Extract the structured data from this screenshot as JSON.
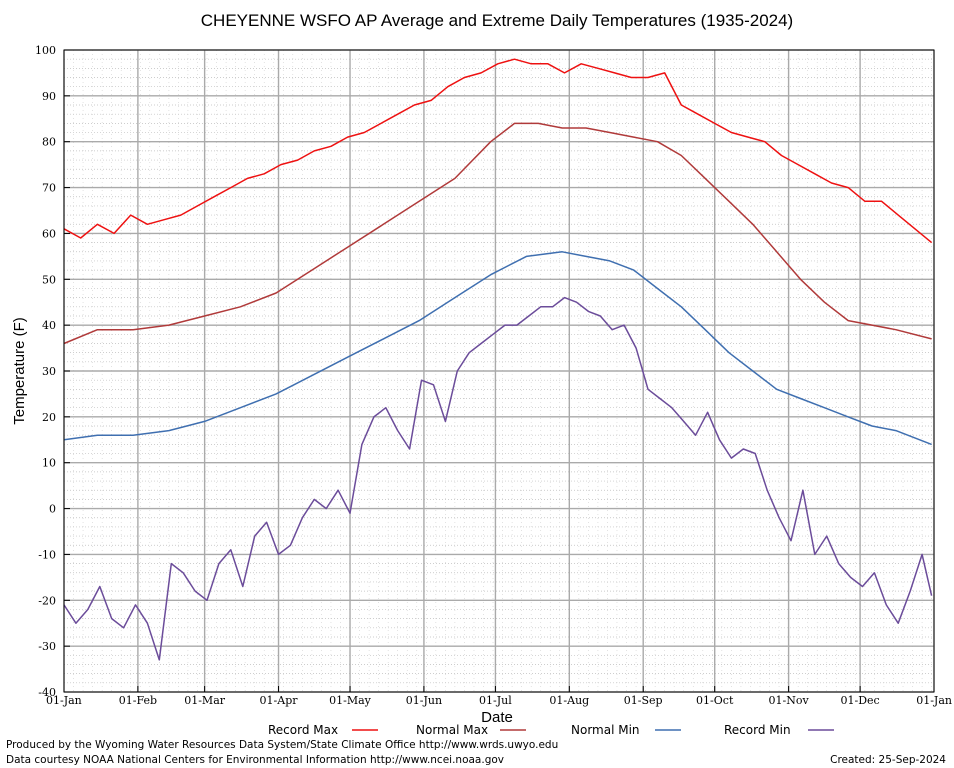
{
  "chart_data": {
    "type": "line",
    "title": "CHEYENNE WSFO AP Average and Extreme Daily Temperatures (1935-2024)",
    "xlabel": "Date",
    "ylabel": "Temperature (F)",
    "ylim": [
      -40,
      100
    ],
    "yticks": [
      -40,
      -30,
      -20,
      -10,
      0,
      10,
      20,
      30,
      40,
      50,
      60,
      70,
      80,
      90,
      100
    ],
    "x_range_days": [
      1,
      366
    ],
    "xticks": [
      {
        "label": "01-Jan",
        "day": 1
      },
      {
        "label": "01-Feb",
        "day": 32
      },
      {
        "label": "01-Mar",
        "day": 60
      },
      {
        "label": "01-Apr",
        "day": 91
      },
      {
        "label": "01-May",
        "day": 121
      },
      {
        "label": "01-Jun",
        "day": 152
      },
      {
        "label": "01-Jul",
        "day": 182
      },
      {
        "label": "01-Aug",
        "day": 213
      },
      {
        "label": "01-Sep",
        "day": 244
      },
      {
        "label": "01-Oct",
        "day": 274
      },
      {
        "label": "01-Nov",
        "day": 305
      },
      {
        "label": "01-Dec",
        "day": 335
      },
      {
        "label": "01-Jan",
        "day": 366
      }
    ],
    "grid": true,
    "legend_position": "bottom",
    "series": [
      {
        "name": "Record Max",
        "color": "#ee1111",
        "x_days": [
          1,
          8,
          15,
          22,
          29,
          36,
          43,
          50,
          57,
          64,
          71,
          78,
          85,
          92,
          99,
          106,
          113,
          120,
          127,
          134,
          141,
          148,
          155,
          162,
          169,
          176,
          183,
          190,
          197,
          204,
          211,
          218,
          225,
          232,
          239,
          246,
          253,
          260,
          267,
          274,
          281,
          288,
          295,
          302,
          309,
          316,
          323,
          330,
          337,
          344,
          351,
          358,
          365
        ],
        "values": [
          61,
          59,
          62,
          60,
          64,
          62,
          63,
          64,
          66,
          68,
          70,
          72,
          73,
          75,
          76,
          78,
          79,
          81,
          82,
          84,
          86,
          88,
          89,
          92,
          94,
          95,
          97,
          98,
          97,
          97,
          95,
          97,
          96,
          95,
          94,
          94,
          95,
          88,
          86,
          84,
          82,
          81,
          80,
          77,
          75,
          73,
          71,
          70,
          67,
          67,
          64,
          61,
          58
        ]
      },
      {
        "name": "Normal Max",
        "color": "#b03a3a",
        "x_days": [
          1,
          15,
          30,
          45,
          60,
          75,
          90,
          105,
          120,
          135,
          150,
          165,
          180,
          190,
          200,
          210,
          220,
          230,
          240,
          250,
          260,
          270,
          280,
          290,
          300,
          310,
          320,
          330,
          340,
          350,
          365
        ],
        "values": [
          36,
          39,
          39,
          40,
          42,
          44,
          47,
          52,
          57,
          62,
          67,
          72,
          80,
          84,
          84,
          83,
          83,
          82,
          81,
          80,
          77,
          72,
          67,
          62,
          56,
          50,
          45,
          41,
          40,
          39,
          37
        ]
      },
      {
        "name": "Normal Min",
        "color": "#3f6fb0",
        "x_days": [
          1,
          15,
          30,
          45,
          60,
          75,
          90,
          105,
          120,
          135,
          150,
          165,
          180,
          195,
          210,
          220,
          230,
          240,
          250,
          260,
          270,
          280,
          290,
          300,
          310,
          320,
          330,
          340,
          350,
          365
        ],
        "values": [
          15,
          16,
          16,
          17,
          19,
          22,
          25,
          29,
          33,
          37,
          41,
          46,
          51,
          55,
          56,
          55,
          54,
          52,
          48,
          44,
          39,
          34,
          30,
          26,
          24,
          22,
          20,
          18,
          17,
          14
        ]
      },
      {
        "name": "Record Min",
        "color": "#6b4c9a",
        "x_days": [
          1,
          6,
          11,
          16,
          21,
          26,
          31,
          36,
          41,
          46,
          51,
          56,
          61,
          66,
          71,
          76,
          81,
          86,
          91,
          96,
          101,
          106,
          111,
          116,
          121,
          126,
          131,
          136,
          141,
          146,
          151,
          156,
          161,
          166,
          171,
          176,
          181,
          186,
          191,
          196,
          201,
          206,
          211,
          216,
          221,
          226,
          231,
          236,
          241,
          246,
          251,
          256,
          261,
          266,
          271,
          276,
          281,
          286,
          291,
          296,
          301,
          306,
          311,
          316,
          321,
          326,
          331,
          336,
          341,
          346,
          351,
          356,
          361,
          365
        ],
        "values": [
          -21,
          -25,
          -22,
          -17,
          -24,
          -26,
          -21,
          -25,
          -33,
          -12,
          -14,
          -18,
          -20,
          -12,
          -9,
          -17,
          -6,
          -3,
          -10,
          -8,
          -2,
          2,
          0,
          4,
          -1,
          14,
          20,
          22,
          17,
          13,
          28,
          27,
          19,
          30,
          34,
          36,
          38,
          40,
          40,
          42,
          44,
          44,
          46,
          45,
          43,
          42,
          39,
          40,
          35,
          26,
          24,
          22,
          19,
          16,
          21,
          15,
          11,
          13,
          12,
          4,
          -2,
          -7,
          4,
          -10,
          -6,
          -12,
          -15,
          -17,
          -14,
          -21,
          -25,
          -18,
          -10,
          -19
        ]
      }
    ]
  },
  "footer": {
    "left_line1": "Produced by the Wyoming Water Resources Data System/State Climate Office http://www.wrds.uwyo.edu",
    "left_line2": "Data courtesy NOAA National Centers for Environmental Information http://www.ncei.noaa.gov",
    "created": "Created:  25-Sep-2024"
  }
}
